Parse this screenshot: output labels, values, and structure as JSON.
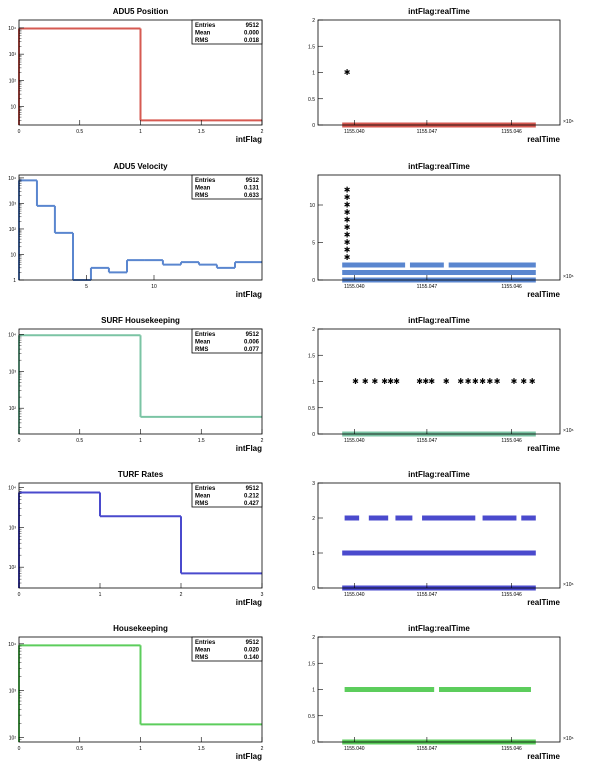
{
  "chart_data": [
    {
      "type": "histogram",
      "title": "ADU5 Position",
      "xlabel": "intFlag",
      "xlim": [
        0,
        2
      ],
      "ylog": true,
      "ylim": [
        2,
        20000
      ],
      "xticks": [
        0,
        0.5,
        1,
        1.5,
        2
      ],
      "xtick_labels": [
        "0",
        "0.5",
        "1",
        "1.5",
        "2"
      ],
      "yticks": [
        10,
        100,
        1000,
        10000
      ],
      "ytick_labels": [
        "10",
        "10²",
        "10³",
        "10⁴"
      ],
      "bins": [
        {
          "x0": 0,
          "x1": 1,
          "y": 9500
        },
        {
          "x0": 1,
          "x1": 2,
          "y": 3
        }
      ],
      "color": "#d65a52",
      "stats": [
        {
          "label": "Entries",
          "value": "9512"
        },
        {
          "label": "Mean",
          "value": "0.000"
        },
        {
          "label": "RMS",
          "value": "0.018"
        }
      ]
    },
    {
      "type": "scatter",
      "title": "intFlag:realTime",
      "xlabel": "realTime",
      "xlim": [
        0,
        10
      ],
      "ylim": [
        0,
        2
      ],
      "yticks": [
        0,
        0.5,
        1,
        1.5,
        2
      ],
      "ytick_labels": [
        "0",
        "0.5",
        "1",
        "1.5",
        "2"
      ],
      "xticks": [
        1.5,
        4.5,
        8
      ],
      "xtick_labels": [
        "1155.040",
        "1155.047",
        "1155.046"
      ],
      "x_exponent": "×10⁶",
      "color": "#d65a52",
      "rows": [
        {
          "y": 0,
          "segments": [
            [
              1.0,
              9.0
            ]
          ]
        }
      ],
      "points": [
        {
          "x": 1.2,
          "y": 1.0
        }
      ]
    },
    {
      "type": "histogram",
      "title": "ADU5 Velocity",
      "xlabel": "intFlag",
      "xlim": [
        0,
        18
      ],
      "ylog": true,
      "ylim": [
        1,
        13000
      ],
      "xticks": [
        5,
        10
      ],
      "xtick_labels": [
        "5",
        "10"
      ],
      "yticks": [
        1,
        10,
        100,
        1000,
        10000
      ],
      "ytick_labels": [
        "1",
        "10",
        "10²",
        "10³",
        "10⁴"
      ],
      "bins": [
        {
          "x0": 0,
          "x1": 1.33,
          "y": 8000
        },
        {
          "x0": 1.33,
          "x1": 2.66,
          "y": 800
        },
        {
          "x0": 2.66,
          "x1": 4,
          "y": 70
        },
        {
          "x0": 4,
          "x1": 5.33,
          "y": 1
        },
        {
          "x0": 5.33,
          "x1": 6.66,
          "y": 3
        },
        {
          "x0": 6.66,
          "x1": 8,
          "y": 2
        },
        {
          "x0": 8,
          "x1": 9.33,
          "y": 6
        },
        {
          "x0": 9.33,
          "x1": 10.66,
          "y": 6
        },
        {
          "x0": 10.66,
          "x1": 12,
          "y": 4
        },
        {
          "x0": 12,
          "x1": 13.33,
          "y": 5
        },
        {
          "x0": 13.33,
          "x1": 14.66,
          "y": 4
        },
        {
          "x0": 14.66,
          "x1": 16,
          "y": 3
        },
        {
          "x0": 16,
          "x1": 18,
          "y": 5
        }
      ],
      "color": "#5a86cf",
      "stats": [
        {
          "label": "Entries",
          "value": "9512"
        },
        {
          "label": "Mean",
          "value": "0.131"
        },
        {
          "label": "RMS",
          "value": "0.633"
        }
      ]
    },
    {
      "type": "scatter",
      "title": "intFlag:realTime",
      "xlabel": "realTime",
      "xlim": [
        0,
        10
      ],
      "ylim": [
        0,
        14
      ],
      "yticks": [
        0,
        5,
        10
      ],
      "ytick_labels": [
        "0",
        "5",
        "10"
      ],
      "xticks": [
        1.5,
        4.5,
        8
      ],
      "xtick_labels": [
        "1155.040",
        "1155.047",
        "1155.046"
      ],
      "x_exponent": "×10⁶",
      "color": "#5a86cf",
      "rows": [
        {
          "y": 0,
          "segments": [
            [
              1.0,
              9.0
            ]
          ]
        },
        {
          "y": 1,
          "segments": [
            [
              1.0,
              9.0
            ]
          ]
        },
        {
          "y": 2,
          "segments": [
            [
              1.0,
              3.6
            ],
            [
              3.8,
              5.2
            ],
            [
              5.4,
              9.0
            ]
          ]
        }
      ],
      "points": [
        {
          "x": 1.2,
          "y": 3
        },
        {
          "x": 1.2,
          "y": 4
        },
        {
          "x": 1.2,
          "y": 5
        },
        {
          "x": 1.2,
          "y": 6
        },
        {
          "x": 1.2,
          "y": 7
        },
        {
          "x": 1.2,
          "y": 8
        },
        {
          "x": 1.2,
          "y": 9
        },
        {
          "x": 1.2,
          "y": 10
        },
        {
          "x": 1.2,
          "y": 11
        },
        {
          "x": 1.2,
          "y": 12
        }
      ]
    },
    {
      "type": "histogram",
      "title": "SURF Housekeeping",
      "xlabel": "intFlag",
      "xlim": [
        0,
        2
      ],
      "ylog": true,
      "ylim": [
        20,
        14000
      ],
      "xticks": [
        0,
        0.5,
        1,
        1.5,
        2
      ],
      "xtick_labels": [
        "0",
        "0.5",
        "1",
        "1.5",
        "2"
      ],
      "yticks": [
        100,
        1000,
        10000
      ],
      "ytick_labels": [
        "10²",
        "10³",
        "10⁴"
      ],
      "bins": [
        {
          "x0": 0,
          "x1": 1,
          "y": 9450
        },
        {
          "x0": 1,
          "x1": 2,
          "y": 58
        }
      ],
      "color": "#7bc4a4",
      "stats": [
        {
          "label": "Entries",
          "value": "9512"
        },
        {
          "label": "Mean",
          "value": "0.006"
        },
        {
          "label": "RMS",
          "value": "0.077"
        }
      ]
    },
    {
      "type": "scatter",
      "title": "intFlag:realTime",
      "xlabel": "realTime",
      "xlim": [
        0,
        10
      ],
      "ylim": [
        0,
        2
      ],
      "yticks": [
        0,
        0.5,
        1,
        1.5,
        2
      ],
      "ytick_labels": [
        "0",
        "0.5",
        "1",
        "1.5",
        "2"
      ],
      "xticks": [
        1.5,
        4.5,
        8
      ],
      "xtick_labels": [
        "1155.040",
        "1155.047",
        "1155.046"
      ],
      "x_exponent": "×10⁶",
      "color": "#7bc4a4",
      "rows": [
        {
          "y": 0,
          "segments": [
            [
              1.0,
              9.0
            ]
          ]
        }
      ],
      "points": [
        {
          "x": 1.55,
          "y": 1
        },
        {
          "x": 1.95,
          "y": 1
        },
        {
          "x": 2.35,
          "y": 1
        },
        {
          "x": 2.75,
          "y": 1
        },
        {
          "x": 3.0,
          "y": 1
        },
        {
          "x": 3.25,
          "y": 1
        },
        {
          "x": 4.2,
          "y": 1
        },
        {
          "x": 4.45,
          "y": 1
        },
        {
          "x": 4.7,
          "y": 1
        },
        {
          "x": 5.3,
          "y": 1
        },
        {
          "x": 5.9,
          "y": 1
        },
        {
          "x": 6.2,
          "y": 1
        },
        {
          "x": 6.5,
          "y": 1
        },
        {
          "x": 6.8,
          "y": 1
        },
        {
          "x": 7.1,
          "y": 1
        },
        {
          "x": 7.4,
          "y": 1
        },
        {
          "x": 8.1,
          "y": 1
        },
        {
          "x": 8.5,
          "y": 1
        },
        {
          "x": 8.85,
          "y": 1
        }
      ]
    },
    {
      "type": "histogram",
      "title": "TURF Rates",
      "xlabel": "intFlag",
      "xlim": [
        0,
        3
      ],
      "ylog": true,
      "ylim": [
        30,
        13000
      ],
      "xticks": [
        0,
        1,
        2,
        3
      ],
      "xtick_labels": [
        "0",
        "1",
        "2",
        "3"
      ],
      "yticks": [
        100,
        1000,
        10000
      ],
      "ytick_labels": [
        "10²",
        "10³",
        "10⁴"
      ],
      "bins": [
        {
          "x0": 0,
          "x1": 1,
          "y": 7500
        },
        {
          "x0": 1,
          "x1": 2,
          "y": 1900
        },
        {
          "x0": 2,
          "x1": 3,
          "y": 70
        }
      ],
      "color": "#4a4acd",
      "stats": [
        {
          "label": "Entries",
          "value": "9512"
        },
        {
          "label": "Mean",
          "value": "0.212"
        },
        {
          "label": "RMS",
          "value": "0.427"
        }
      ]
    },
    {
      "type": "scatter",
      "title": "intFlag:realTime",
      "xlabel": "realTime",
      "xlim": [
        0,
        10
      ],
      "ylim": [
        0,
        3
      ],
      "yticks": [
        0,
        1,
        2,
        3
      ],
      "ytick_labels": [
        "0",
        "1",
        "2",
        "3"
      ],
      "xticks": [
        1.5,
        4.5,
        8
      ],
      "xtick_labels": [
        "1155.040",
        "1155.047",
        "1155.046"
      ],
      "x_exponent": "×10⁶",
      "color": "#4a4acd",
      "rows": [
        {
          "y": 0,
          "segments": [
            [
              1.0,
              9.0
            ]
          ]
        },
        {
          "y": 1,
          "segments": [
            [
              1.0,
              9.0
            ]
          ]
        },
        {
          "y": 2,
          "segments": [
            [
              1.1,
              1.7
            ],
            [
              2.1,
              2.9
            ],
            [
              3.2,
              3.9
            ],
            [
              4.3,
              6.5
            ],
            [
              6.8,
              8.2
            ],
            [
              8.4,
              9.0
            ]
          ]
        }
      ],
      "points": []
    },
    {
      "type": "histogram",
      "title": "Housekeeping",
      "xlabel": "intFlag",
      "xlim": [
        0,
        2
      ],
      "ylog": true,
      "ylim": [
        80,
        14000
      ],
      "xticks": [
        0,
        0.5,
        1,
        1.5,
        2
      ],
      "xtick_labels": [
        "0",
        "0.5",
        "1",
        "1.5",
        "2"
      ],
      "yticks": [
        100,
        1000,
        10000
      ],
      "ytick_labels": [
        "10²",
        "10³",
        "10⁴"
      ],
      "bins": [
        {
          "x0": 0,
          "x1": 1,
          "y": 9300
        },
        {
          "x0": 1,
          "x1": 2,
          "y": 190
        }
      ],
      "color": "#5ccd5c",
      "stats": [
        {
          "label": "Entries",
          "value": "9512"
        },
        {
          "label": "Mean",
          "value": "0.020"
        },
        {
          "label": "RMS",
          "value": "0.140"
        }
      ]
    },
    {
      "type": "scatter",
      "title": "intFlag:realTime",
      "xlabel": "realTime",
      "xlim": [
        0,
        10
      ],
      "ylim": [
        0,
        2
      ],
      "yticks": [
        0,
        0.5,
        1,
        1.5,
        2
      ],
      "ytick_labels": [
        "0",
        "0.5",
        "1",
        "1.5",
        "2"
      ],
      "xticks": [
        1.5,
        4.5,
        8
      ],
      "xtick_labels": [
        "1155.040",
        "1155.047",
        "1155.046"
      ],
      "x_exponent": "×10⁶",
      "color": "#5ccd5c",
      "rows": [
        {
          "y": 0,
          "segments": [
            [
              1.0,
              9.0
            ]
          ]
        },
        {
          "y": 1,
          "segments": [
            [
              1.1,
              4.8
            ],
            [
              5.0,
              8.8
            ]
          ]
        }
      ],
      "points": []
    }
  ]
}
